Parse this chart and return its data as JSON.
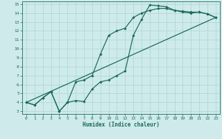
{
  "xlabel": "Humidex (Indice chaleur)",
  "bg_color": "#ceeaea",
  "line_color": "#1a6b5a",
  "grid_color": "#aad4d4",
  "xlim": [
    -0.5,
    23.5
  ],
  "ylim": [
    2.7,
    15.3
  ],
  "xticks": [
    0,
    1,
    2,
    3,
    4,
    5,
    6,
    7,
    8,
    9,
    10,
    11,
    12,
    13,
    14,
    15,
    16,
    17,
    18,
    19,
    20,
    21,
    22,
    23
  ],
  "yticks": [
    3,
    4,
    5,
    6,
    7,
    8,
    9,
    10,
    11,
    12,
    13,
    14,
    15
  ],
  "line1_x": [
    0,
    1,
    2,
    3,
    4,
    5,
    6,
    7,
    8,
    9,
    10,
    11,
    12,
    13,
    14,
    15,
    16,
    17,
    18,
    19,
    20,
    21,
    22,
    23
  ],
  "line1_y": [
    4.0,
    3.7,
    4.5,
    5.2,
    3.0,
    4.0,
    4.2,
    4.1,
    5.5,
    6.3,
    6.5,
    7.0,
    7.5,
    11.5,
    13.3,
    14.9,
    14.8,
    14.7,
    14.3,
    14.2,
    14.1,
    14.1,
    13.9,
    13.5
  ],
  "line2_x": [
    0,
    1,
    2,
    3,
    4,
    5,
    6,
    7,
    8,
    9,
    10,
    11,
    12,
    13,
    14,
    15,
    16,
    17,
    18,
    19,
    20,
    21,
    22,
    23
  ],
  "line2_y": [
    4.0,
    3.7,
    4.5,
    5.2,
    3.0,
    4.0,
    6.3,
    6.5,
    7.0,
    9.4,
    11.5,
    12.0,
    12.3,
    13.5,
    14.0,
    14.3,
    14.5,
    14.5,
    14.3,
    14.1,
    14.0,
    14.1,
    13.9,
    13.5
  ],
  "line3_x": [
    0,
    23
  ],
  "line3_y": [
    4.0,
    13.5
  ]
}
